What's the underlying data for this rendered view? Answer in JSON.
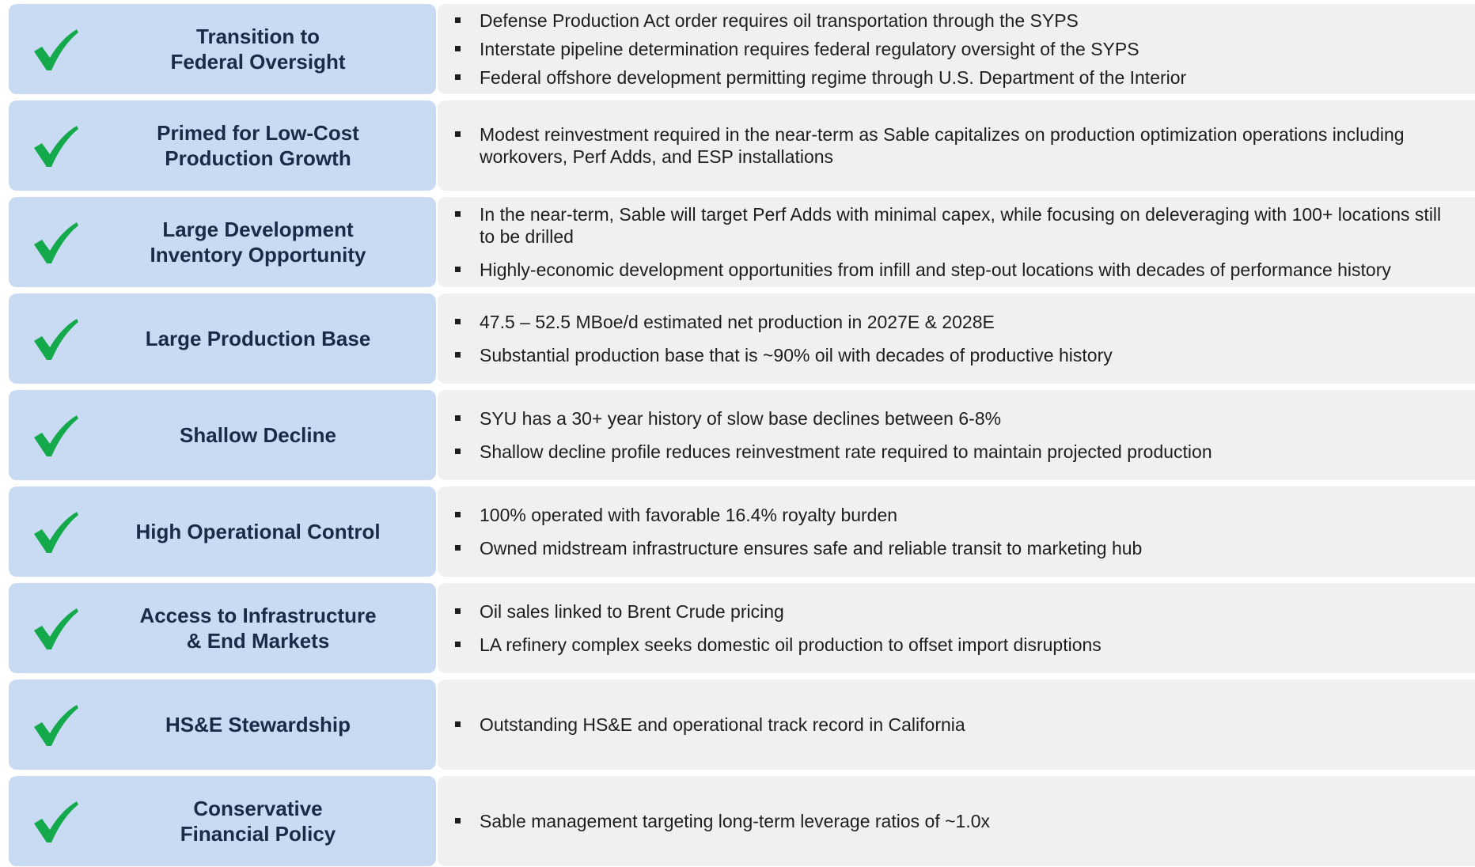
{
  "rows": [
    {
      "title": [
        "Transition to",
        "Federal Oversight"
      ],
      "bullets": [
        "Defense Production Act order requires oil transportation through the SYPS",
        "Interstate pipeline determination requires federal regulatory oversight of the SYPS",
        "Federal offshore development permitting regime through U.S. Department of the Interior"
      ]
    },
    {
      "title": [
        "Primed for Low-Cost",
        "Production Growth"
      ],
      "bullets": [
        "Modest reinvestment required in the near-term as Sable capitalizes on production optimization operations including workovers, Perf Adds, and ESP installations"
      ]
    },
    {
      "title": [
        "Large Development",
        "Inventory Opportunity"
      ],
      "bullets": [
        "In the near-term, Sable will target Perf Adds with minimal capex, while focusing on deleveraging with 100+ locations still to be drilled",
        "Highly-economic development opportunities from infill and step-out locations with decades of performance history"
      ]
    },
    {
      "title": [
        "Large Production Base"
      ],
      "bullets": [
        "47.5 – 52.5 MBoe/d estimated net production in 2027E & 2028E",
        "Substantial production base that is ~90% oil with decades of productive history"
      ]
    },
    {
      "title": [
        "Shallow Decline"
      ],
      "bullets": [
        "SYU has a 30+ year history of slow base declines between 6-8%",
        "Shallow decline profile reduces reinvestment rate required to maintain projected production"
      ]
    },
    {
      "title": [
        "High Operational Control"
      ],
      "bullets": [
        "100% operated with favorable 16.4% royalty burden",
        "Owned midstream infrastructure ensures safe and reliable transit to marketing hub"
      ]
    },
    {
      "title": [
        "Access to Infrastructure",
        "& End Markets"
      ],
      "bullets": [
        "Oil sales linked to Brent Crude pricing",
        "LA refinery complex seeks domestic oil production to offset import disruptions"
      ]
    },
    {
      "title": [
        "HS&E Stewardship"
      ],
      "bullets": [
        "Outstanding HS&E and operational track record in California"
      ]
    },
    {
      "title": [
        "Conservative",
        "Financial Policy"
      ],
      "bullets": [
        "Sable management targeting long-term leverage ratios of ~1.0x"
      ]
    }
  ]
}
